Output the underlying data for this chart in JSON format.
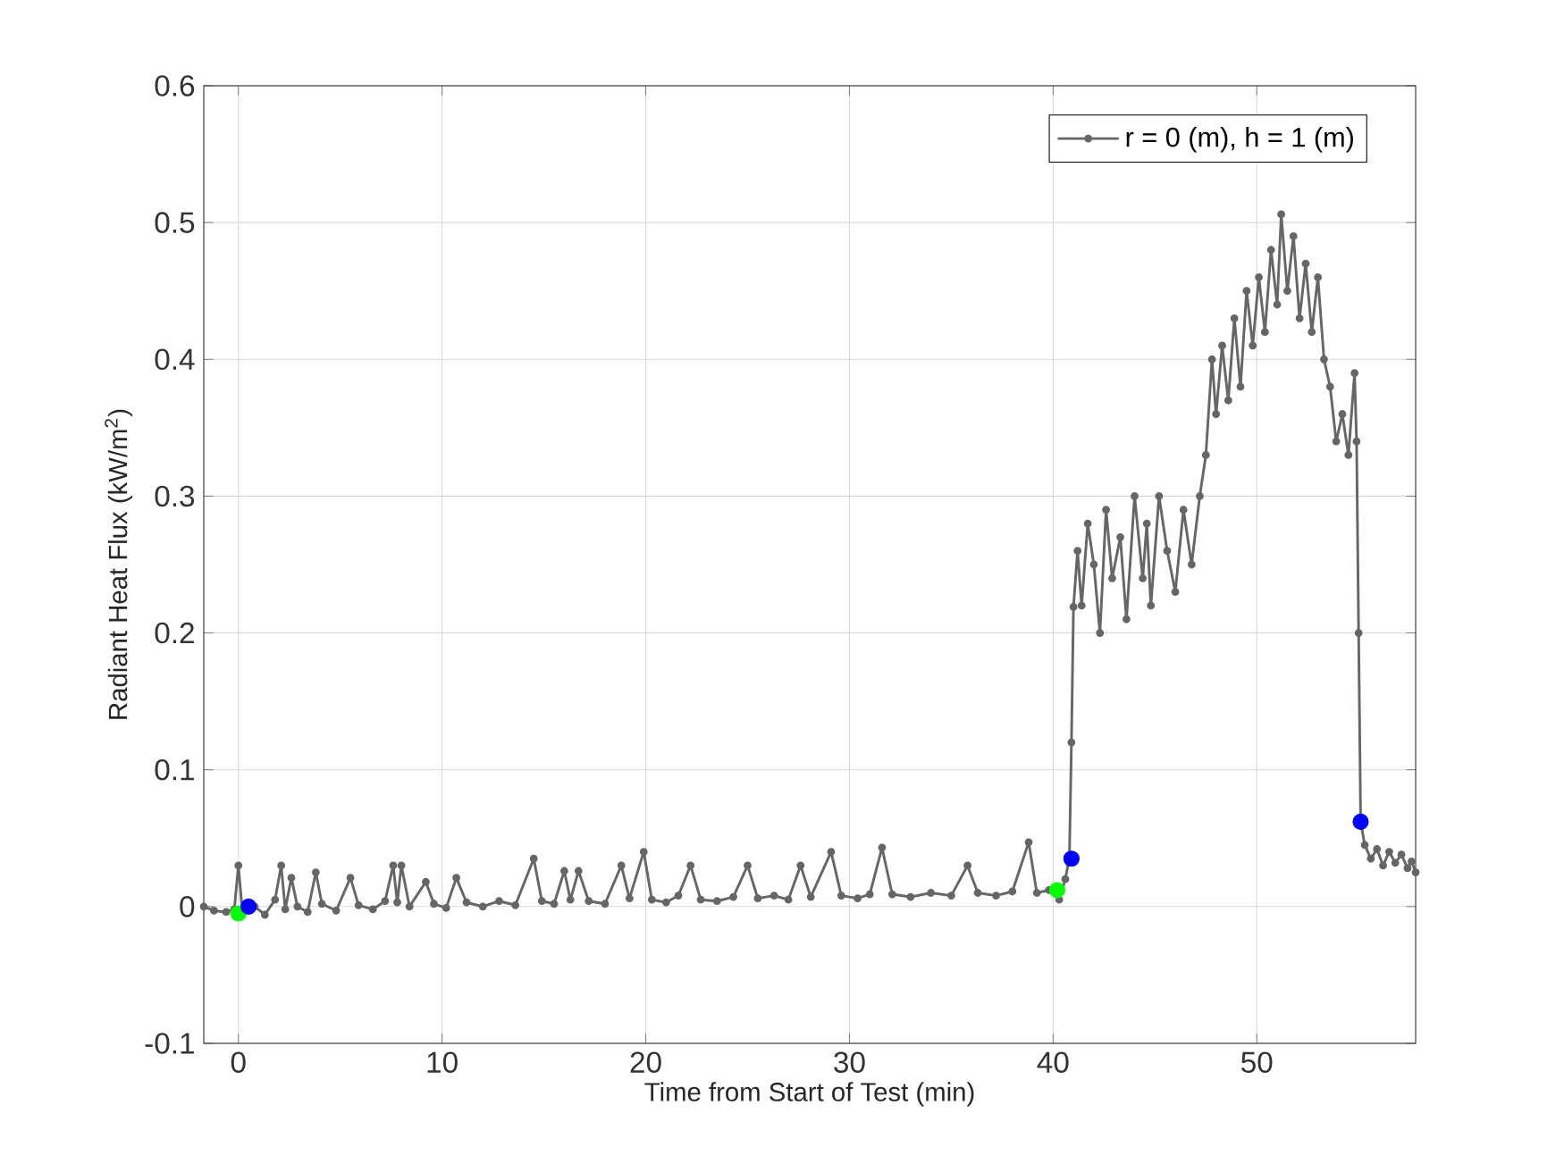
{
  "chart_data": {
    "type": "line",
    "xlabel": "Time from Start of Test (min)",
    "ylabel": "Radiant Heat Flux (kW/m$^{2}$)",
    "xlim": [
      -1.7,
      57.8
    ],
    "ylim": [
      -0.1,
      0.6
    ],
    "xticks": [
      0,
      10,
      20,
      30,
      40,
      50
    ],
    "yticks": [
      -0.1,
      0,
      0.1,
      0.2,
      0.3,
      0.4,
      0.5,
      0.6
    ],
    "grid": true,
    "legend": "top right",
    "marker": "circle",
    "line_style": "solid",
    "series": [
      {
        "name": "r = 0 (m), h = 1 (m)",
        "color": "#666666",
        "x": [
          -1.7,
          -1.2,
          -0.6,
          -0.2,
          0.0,
          0.2,
          0.8,
          1.3,
          1.8,
          2.1,
          2.3,
          2.6,
          2.9,
          3.4,
          3.8,
          4.1,
          4.8,
          5.5,
          5.9,
          6.6,
          7.2,
          7.6,
          7.8,
          8.0,
          8.4,
          9.2,
          9.6,
          10.2,
          10.7,
          11.2,
          12.0,
          12.8,
          13.6,
          14.5,
          14.9,
          15.5,
          16.0,
          16.3,
          16.7,
          17.2,
          18.0,
          18.8,
          19.2,
          19.9,
          20.3,
          21.0,
          21.6,
          22.2,
          22.7,
          23.5,
          24.3,
          25.0,
          25.5,
          26.3,
          27.0,
          27.6,
          28.1,
          29.1,
          29.6,
          30.4,
          31.0,
          31.6,
          32.1,
          33.0,
          34.0,
          35.0,
          35.8,
          36.3,
          37.2,
          38.0,
          38.8,
          39.2,
          39.8,
          40.3,
          40.6,
          40.8,
          40.9,
          41.0,
          41.2,
          41.4,
          41.7,
          42.0,
          42.3,
          42.6,
          42.9,
          43.3,
          43.6,
          44.0,
          44.4,
          44.6,
          44.8,
          45.2,
          45.6,
          46.0,
          46.4,
          46.8,
          47.2,
          47.5,
          47.8,
          48.0,
          48.3,
          48.6,
          48.9,
          49.2,
          49.5,
          49.8,
          50.1,
          50.4,
          50.7,
          51.0,
          51.2,
          51.5,
          51.8,
          52.1,
          52.4,
          52.7,
          53.0,
          53.3,
          53.6,
          53.9,
          54.2,
          54.5,
          54.8,
          54.9,
          55.0,
          55.1,
          55.3,
          55.6,
          55.9,
          56.2,
          56.5,
          56.8,
          57.1,
          57.4,
          57.6,
          57.8
        ],
        "values": [
          0.0,
          -0.003,
          -0.004,
          -0.002,
          0.03,
          -0.005,
          0.0,
          -0.006,
          0.005,
          0.03,
          -0.002,
          0.021,
          0.0,
          -0.004,
          0.025,
          0.002,
          -0.003,
          0.021,
          0.001,
          -0.002,
          0.004,
          0.03,
          0.003,
          0.03,
          0.0,
          0.018,
          0.002,
          -0.001,
          0.021,
          0.003,
          0.0,
          0.004,
          0.001,
          0.035,
          0.004,
          0.002,
          0.026,
          0.005,
          0.026,
          0.004,
          0.002,
          0.03,
          0.006,
          0.04,
          0.005,
          0.003,
          0.008,
          0.03,
          0.005,
          0.004,
          0.007,
          0.03,
          0.006,
          0.008,
          0.005,
          0.03,
          0.007,
          0.04,
          0.008,
          0.006,
          0.009,
          0.043,
          0.009,
          0.007,
          0.01,
          0.008,
          0.03,
          0.01,
          0.008,
          0.011,
          0.047,
          0.01,
          0.012,
          0.005,
          0.02,
          0.036,
          0.12,
          0.219,
          0.26,
          0.22,
          0.28,
          0.25,
          0.2,
          0.29,
          0.24,
          0.27,
          0.21,
          0.3,
          0.24,
          0.28,
          0.22,
          0.3,
          0.26,
          0.23,
          0.29,
          0.25,
          0.3,
          0.33,
          0.4,
          0.36,
          0.41,
          0.37,
          0.43,
          0.38,
          0.45,
          0.41,
          0.46,
          0.42,
          0.48,
          0.44,
          0.506,
          0.45,
          0.49,
          0.43,
          0.47,
          0.42,
          0.46,
          0.4,
          0.38,
          0.34,
          0.36,
          0.33,
          0.39,
          0.34,
          0.2,
          0.062,
          0.045,
          0.035,
          0.042,
          0.03,
          0.04,
          0.032,
          0.038,
          0.028,
          0.033,
          0.025
        ]
      },
      {
        "type": "scatter",
        "color": "#00ff00",
        "x": [
          0.0,
          40.2
        ],
        "values": [
          -0.005,
          0.012
        ]
      },
      {
        "type": "scatter",
        "color": "#0000ff",
        "x": [
          0.5,
          40.9,
          55.1
        ],
        "values": [
          0.0,
          0.035,
          0.062
        ]
      }
    ]
  }
}
